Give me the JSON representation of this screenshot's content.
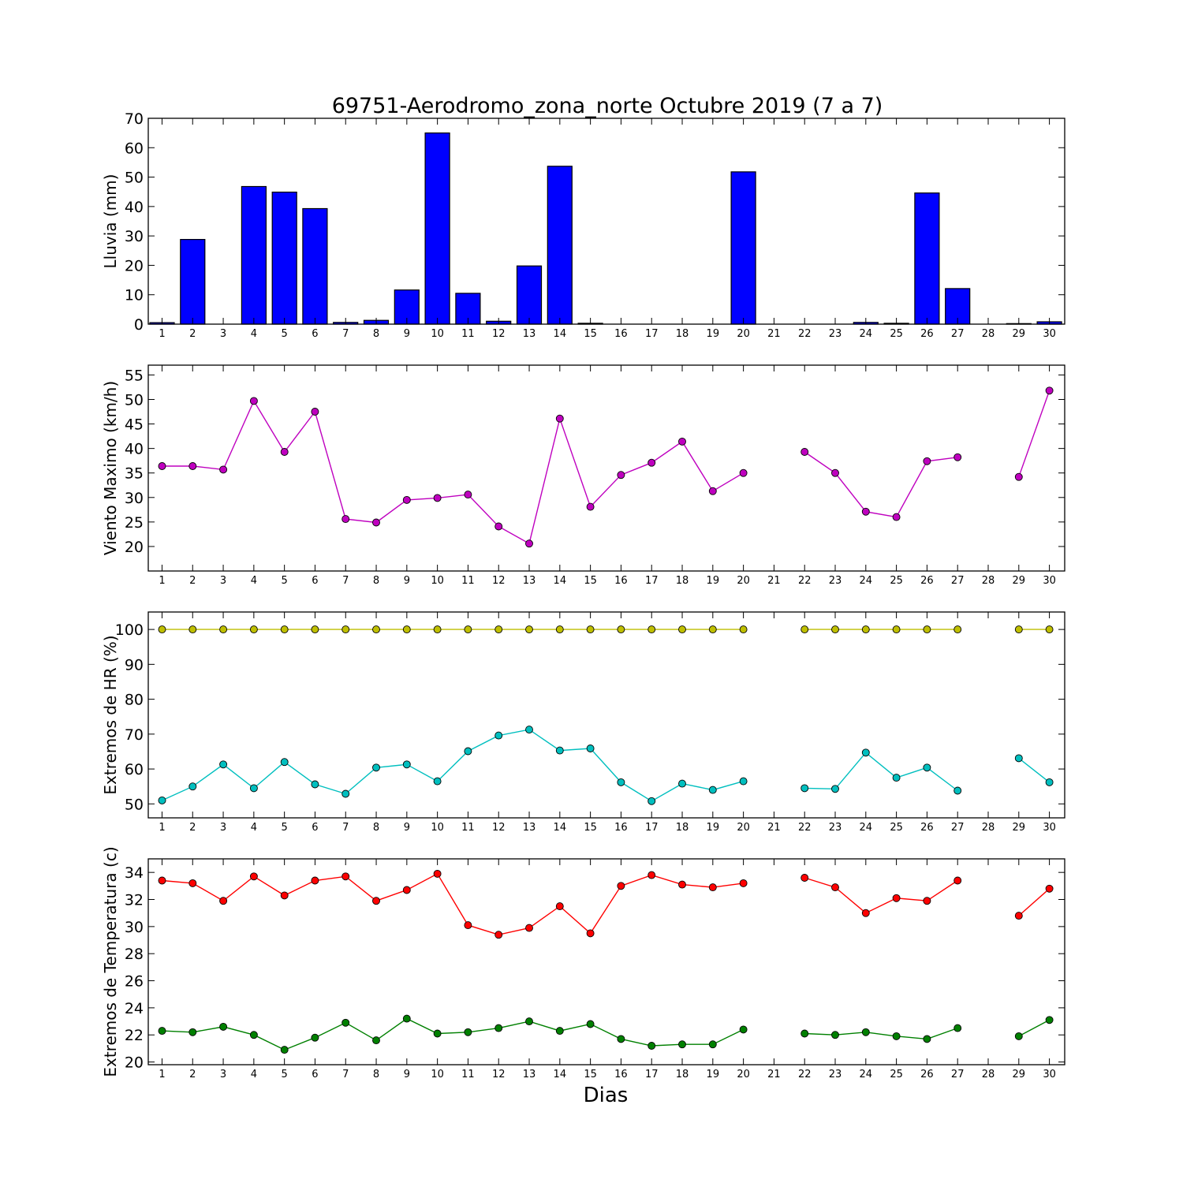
{
  "figure": {
    "title": "69751-Aerodromo_zona_norte Octubre 2019  (7 a 7)",
    "xlabel": "Dias"
  },
  "chart_data": [
    {
      "type": "bar",
      "name": "lluvia",
      "ylabel": "Lluvia (mm)",
      "ylim": [
        0,
        70
      ],
      "yticks": [
        0,
        10,
        20,
        30,
        40,
        50,
        60,
        70
      ],
      "categories": [
        1,
        2,
        3,
        4,
        5,
        6,
        7,
        8,
        9,
        10,
        11,
        12,
        13,
        14,
        15,
        16,
        17,
        18,
        19,
        20,
        21,
        22,
        23,
        24,
        25,
        26,
        27,
        28,
        29,
        30
      ],
      "bar_color": "#0000ff",
      "values": [
        0.5,
        28.8,
        0,
        46.8,
        44.9,
        39.3,
        0.6,
        1.3,
        11.6,
        65.0,
        10.5,
        1.0,
        19.8,
        53.7,
        0.3,
        0,
        0,
        0,
        0,
        51.8,
        0,
        0,
        0,
        0.6,
        0.3,
        44.6,
        12.1,
        0,
        0.2,
        0.8
      ]
    },
    {
      "type": "line",
      "name": "viento",
      "ylabel": "Viento Maximo (km/h)",
      "ylim": [
        15,
        57
      ],
      "yticks": [
        20,
        25,
        30,
        35,
        40,
        45,
        50,
        55
      ],
      "x": [
        1,
        2,
        3,
        4,
        5,
        6,
        7,
        8,
        9,
        10,
        11,
        12,
        13,
        14,
        15,
        16,
        17,
        18,
        19,
        20,
        21,
        22,
        23,
        24,
        25,
        26,
        27,
        28,
        29,
        30
      ],
      "series": [
        {
          "color": "#bf00bf",
          "values": [
            36.4,
            36.4,
            35.7,
            49.7,
            39.3,
            47.5,
            25.6,
            24.9,
            29.5,
            29.9,
            30.6,
            24.1,
            20.6,
            46.1,
            28.1,
            34.6,
            37.1,
            41.4,
            31.3,
            35.0,
            null,
            39.3,
            35.0,
            27.1,
            26.0,
            37.4,
            38.2,
            null,
            34.2,
            51.8
          ]
        }
      ]
    },
    {
      "type": "line",
      "name": "humedad",
      "ylabel": "Extremos de HR (%)",
      "ylim": [
        46,
        105
      ],
      "yticks": [
        50,
        60,
        70,
        80,
        90,
        100
      ],
      "x": [
        1,
        2,
        3,
        4,
        5,
        6,
        7,
        8,
        9,
        10,
        11,
        12,
        13,
        14,
        15,
        16,
        17,
        18,
        19,
        20,
        21,
        22,
        23,
        24,
        25,
        26,
        27,
        28,
        29,
        30
      ],
      "series": [
        {
          "color": "#bfbf00",
          "values": [
            100,
            100,
            100,
            100,
            100,
            100,
            100,
            100,
            100,
            100,
            100,
            100,
            100,
            100,
            100,
            100,
            100,
            100,
            100,
            100,
            null,
            100,
            100,
            100,
            100,
            100,
            100,
            null,
            100,
            100
          ]
        },
        {
          "color": "#00bfbf",
          "values": [
            51,
            55,
            61.3,
            54.5,
            62,
            55.6,
            52.9,
            60.4,
            61.3,
            56.5,
            65.1,
            69.6,
            71.3,
            65.3,
            65.9,
            56.2,
            50.8,
            55.8,
            54,
            56.5,
            null,
            54.5,
            54.3,
            64.7,
            57.5,
            60.4,
            53.8,
            null,
            63.1,
            56.2
          ]
        }
      ]
    },
    {
      "type": "line",
      "name": "temperatura",
      "ylabel": "Extremos de Temperatura (c)",
      "ylim": [
        19.8,
        35
      ],
      "yticks": [
        20,
        22,
        24,
        26,
        28,
        30,
        32,
        34
      ],
      "x": [
        1,
        2,
        3,
        4,
        5,
        6,
        7,
        8,
        9,
        10,
        11,
        12,
        13,
        14,
        15,
        16,
        17,
        18,
        19,
        20,
        21,
        22,
        23,
        24,
        25,
        26,
        27,
        28,
        29,
        30
      ],
      "series": [
        {
          "color": "#ff0000",
          "values": [
            33.4,
            33.2,
            31.9,
            33.7,
            32.3,
            33.4,
            33.7,
            31.9,
            32.7,
            33.9,
            30.1,
            29.4,
            29.9,
            31.5,
            29.5,
            33.0,
            33.8,
            33.1,
            32.9,
            33.2,
            null,
            33.6,
            32.9,
            31.0,
            32.1,
            31.9,
            33.4,
            null,
            30.8,
            32.8
          ]
        },
        {
          "color": "#008000",
          "values": [
            22.3,
            22.2,
            22.6,
            22.0,
            20.9,
            21.8,
            22.9,
            21.6,
            23.2,
            22.1,
            22.2,
            22.5,
            23.0,
            22.3,
            22.8,
            21.7,
            21.2,
            21.3,
            21.3,
            22.4,
            null,
            22.1,
            22.0,
            22.2,
            21.9,
            21.7,
            22.5,
            null,
            21.9,
            23.1
          ]
        }
      ]
    }
  ]
}
